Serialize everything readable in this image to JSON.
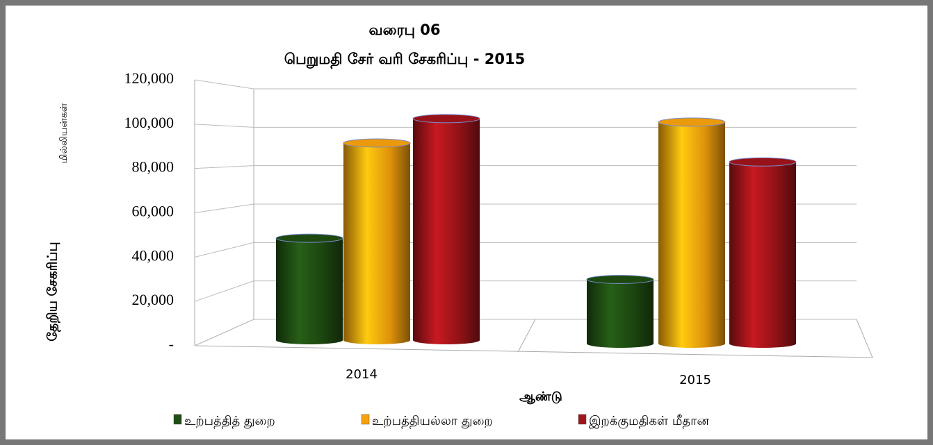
{
  "chart_data": {
    "type": "bar3d",
    "title": "வரைபு 06",
    "subtitle": "பெறுமதி சேர் வரி சேகரிப்பு - 2015",
    "y_unit_label": "மில்லியன்கள்",
    "y_axis_label": "தேறிய சேகரிப்பு",
    "x_axis_label": "ஆண்டு",
    "categories": [
      "2014",
      "2015"
    ],
    "series": [
      {
        "name": "உற்பத்தித் துறை",
        "color": "#1f4d12",
        "values": [
          46000,
          29000
        ]
      },
      {
        "name": "உற்பத்தியல்லா துறை",
        "color": "#f7a20c",
        "values": [
          89000,
          100000
        ]
      },
      {
        "name": "இறக்குமதிகள் மீதான",
        "color": "#a0141a",
        "values": [
          100000,
          82000
        ]
      }
    ],
    "ylim": [
      0,
      120000
    ],
    "yticks": [
      {
        "value": 0,
        "label": "-"
      },
      {
        "value": 20000,
        "label": "20,000"
      },
      {
        "value": 40000,
        "label": "40,000"
      },
      {
        "value": 60000,
        "label": "60,000"
      },
      {
        "value": 80000,
        "label": "80,000"
      },
      {
        "value": 100000,
        "label": "100,000"
      },
      {
        "value": 120000,
        "label": "120,000"
      }
    ],
    "grid": true
  }
}
